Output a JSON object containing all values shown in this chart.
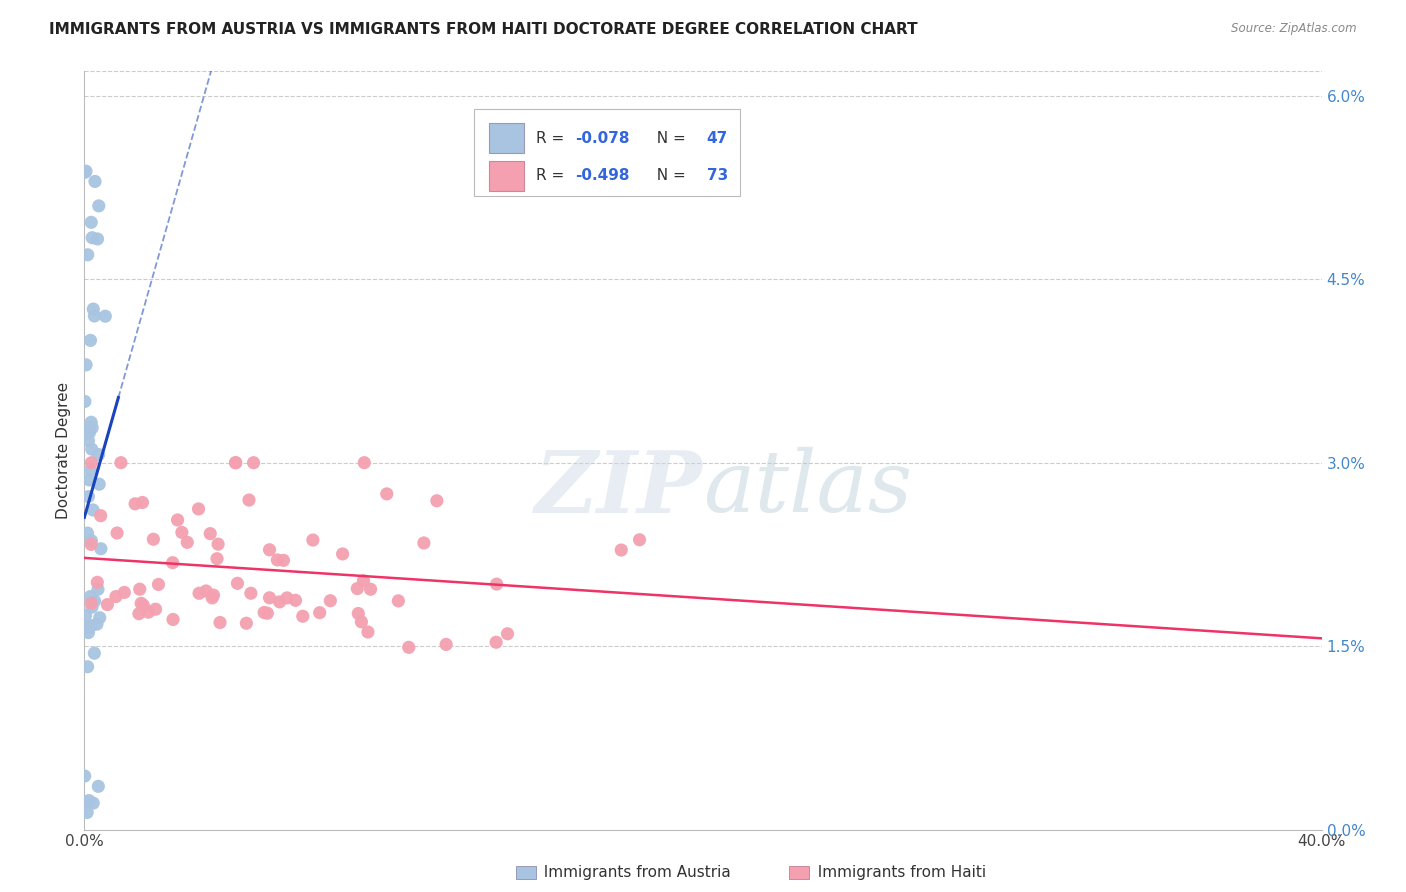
{
  "title": "IMMIGRANTS FROM AUSTRIA VS IMMIGRANTS FROM HAITI DOCTORATE DEGREE CORRELATION CHART",
  "source": "Source: ZipAtlas.com",
  "ylabel": "Doctorate Degree",
  "xlim": [
    0.0,
    0.4
  ],
  "ylim": [
    0.0,
    0.062
  ],
  "ytick_vals": [
    0.0,
    0.015,
    0.03,
    0.045,
    0.06
  ],
  "ytick_labels_right": [
    "0.0%",
    "1.5%",
    "3.0%",
    "4.5%",
    "6.0%"
  ],
  "xtick_positions": [
    0.0,
    0.1,
    0.2,
    0.3,
    0.4
  ],
  "xtick_labels": [
    "0.0%",
    "",
    "",
    "",
    "40.0%"
  ],
  "austria_color": "#a8c4e0",
  "haiti_color": "#f4a0b0",
  "austria_line_color": "#1a44bb",
  "haiti_line_color": "#ee3366",
  "background_color": "#ffffff",
  "austria_R": "-0.078",
  "austria_N": "47",
  "haiti_R": "-0.498",
  "haiti_N": "73",
  "legend_label_austria": "Immigrants from Austria",
  "legend_label_haiti": "Immigrants from Haiti",
  "austria_seed": 10,
  "haiti_seed": 20
}
